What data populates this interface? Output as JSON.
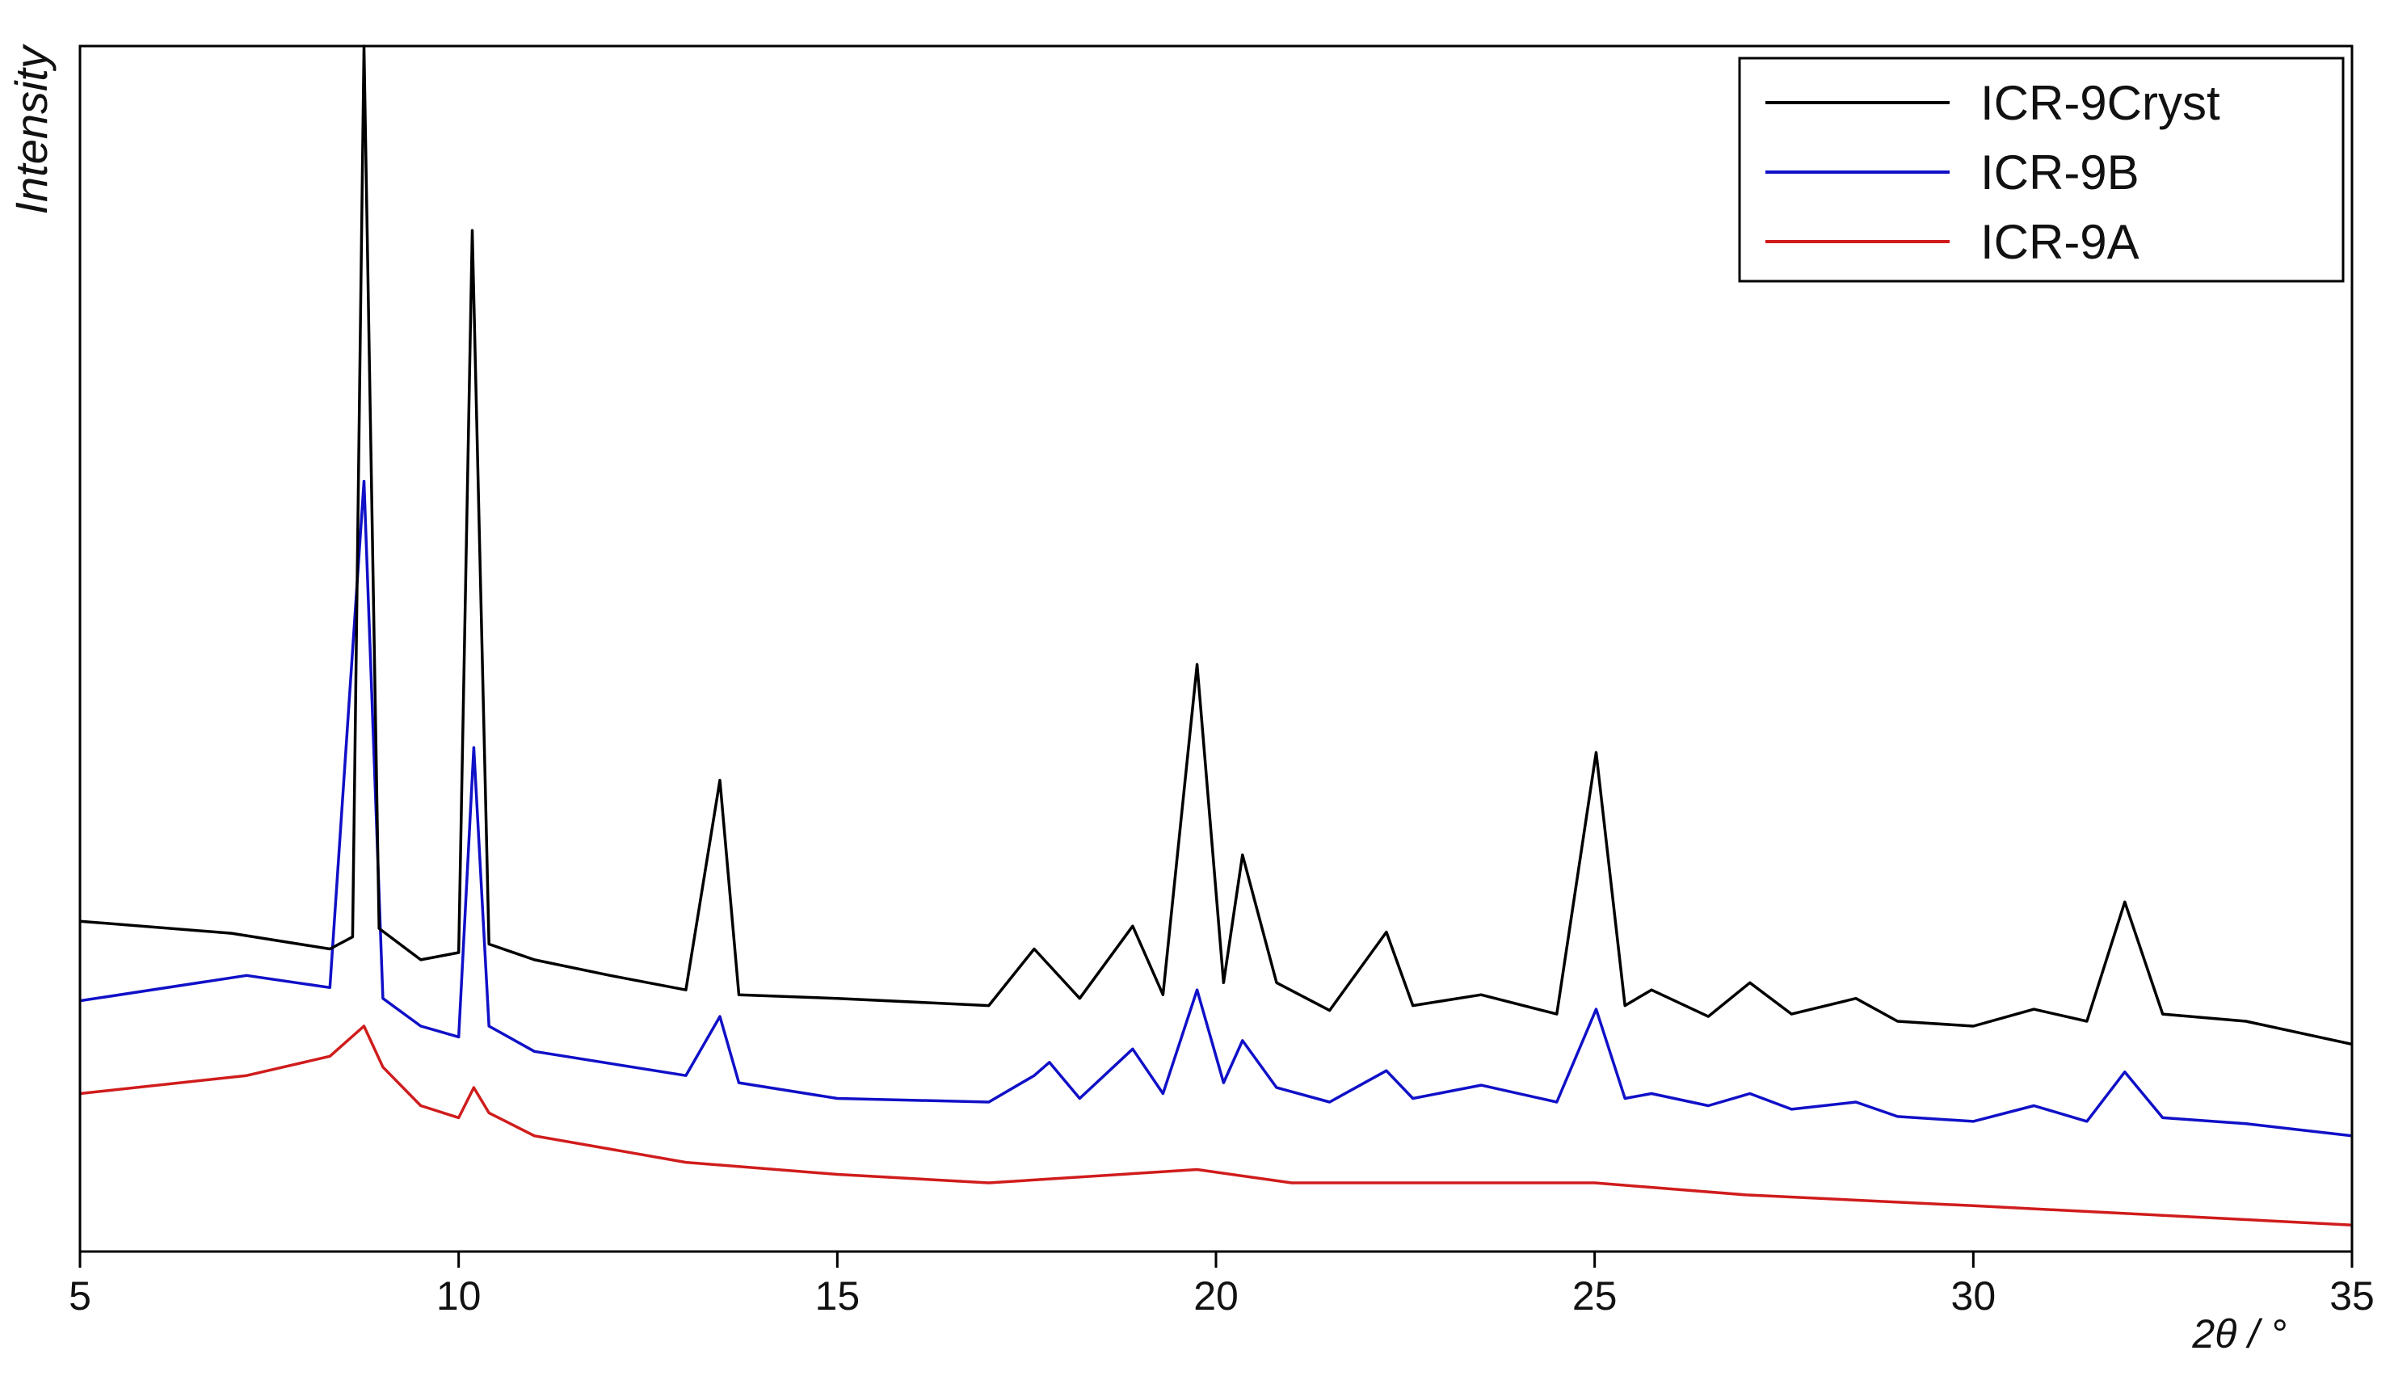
{
  "chart_data": {
    "type": "line",
    "xlabel": "2θ / °",
    "ylabel": "Intensity",
    "xlim": [
      5,
      35
    ],
    "xticks": [
      5,
      10,
      15,
      20,
      25,
      30,
      35
    ],
    "ylim": [
      0,
      100
    ],
    "legend": "upper right",
    "series": [
      {
        "name": "ICR-9Cryst",
        "color": "#000000",
        "x": [
          5,
          7,
          8.3,
          8.6,
          8.75,
          8.95,
          9.5,
          10.0,
          10.18,
          10.4,
          11,
          12,
          13,
          13.45,
          13.7,
          15,
          17,
          17.6,
          18.2,
          18.9,
          19.3,
          19.75,
          20.1,
          20.35,
          20.8,
          21.5,
          22.25,
          22.6,
          23.5,
          24.5,
          25.02,
          25.4,
          25.75,
          26.5,
          27.05,
          27.6,
          28.45,
          29,
          30,
          30.8,
          31.5,
          32.0,
          32.5,
          33.6,
          35
        ],
        "values": [
          27.4,
          26.4,
          25.1,
          26.1,
          100,
          26.8,
          24.2,
          24.8,
          84.7,
          25.5,
          24.2,
          22.9,
          21.7,
          39.1,
          21.3,
          21.0,
          20.4,
          25.1,
          21.0,
          27.0,
          21.3,
          48.7,
          22.3,
          32.9,
          22.3,
          20.0,
          26.5,
          20.4,
          21.3,
          19.7,
          41.4,
          20.4,
          21.7,
          19.5,
          22.3,
          19.7,
          21.0,
          19.1,
          18.7,
          20.1,
          19.1,
          29.0,
          19.7,
          19.1,
          17.2
        ]
      },
      {
        "name": "ICR-9B",
        "color": "#1010c8",
        "x": [
          5,
          7.2,
          8.3,
          8.75,
          9.0,
          9.5,
          10.0,
          10.2,
          10.4,
          11,
          13,
          13.45,
          13.7,
          15,
          17,
          17.6,
          17.8,
          18.2,
          18.9,
          19.3,
          19.75,
          20.1,
          20.35,
          20.8,
          21.5,
          22.25,
          22.6,
          23.5,
          24.5,
          25.02,
          25.4,
          25.75,
          26.5,
          27.05,
          27.6,
          28.45,
          29,
          30,
          30.8,
          31.5,
          32.0,
          32.5,
          33.6,
          35
        ],
        "values": [
          20.8,
          22.9,
          21.9,
          63.9,
          21.0,
          18.7,
          17.8,
          41.8,
          18.7,
          16.6,
          14.6,
          19.5,
          14.0,
          12.7,
          12.4,
          14.6,
          15.7,
          12.7,
          16.8,
          13.1,
          21.7,
          14.0,
          17.5,
          13.6,
          12.4,
          15.0,
          12.7,
          13.8,
          12.4,
          20.1,
          12.7,
          13.1,
          12.1,
          13.1,
          11.8,
          12.4,
          11.2,
          10.8,
          12.1,
          10.8,
          14.9,
          11.1,
          10.6,
          9.6
        ]
      },
      {
        "name": "ICR-9A",
        "color": "#d01c1c",
        "x": [
          5,
          7.2,
          8.3,
          8.75,
          9.0,
          9.5,
          10.0,
          10.2,
          10.4,
          11,
          13,
          15,
          17,
          19.75,
          21,
          25,
          27,
          30,
          35
        ],
        "values": [
          13.1,
          14.6,
          16.2,
          18.7,
          15.3,
          12.1,
          11.1,
          13.6,
          11.5,
          9.6,
          7.4,
          6.4,
          5.7,
          6.8,
          5.7,
          5.7,
          4.7,
          3.8,
          2.2
        ]
      }
    ]
  }
}
